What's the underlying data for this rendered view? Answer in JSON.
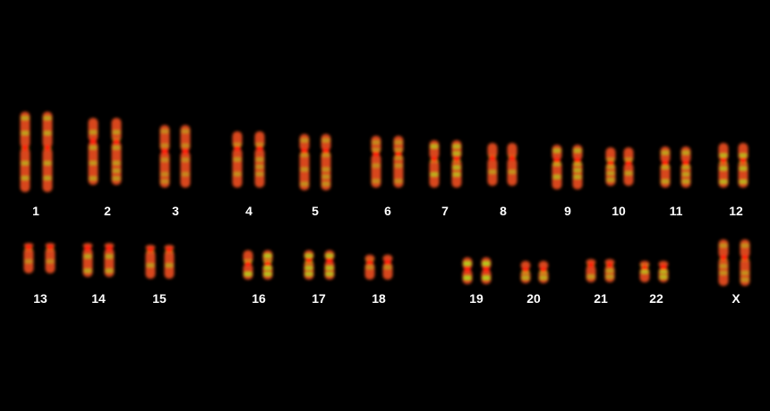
{
  "karyotype": {
    "labels": [
      "1",
      "2",
      "3",
      "4",
      "5",
      "6",
      "7",
      "8",
      "9",
      "10",
      "11",
      "12",
      "13",
      "14",
      "15",
      "16",
      "17",
      "18",
      "19",
      "20",
      "21",
      "22",
      "X"
    ],
    "colors": {
      "background": "#000000",
      "chromatid": "#d8461a",
      "band_green": "#a8e21c",
      "centromere": "#ff1a10",
      "label": "#ffffff"
    }
  }
}
